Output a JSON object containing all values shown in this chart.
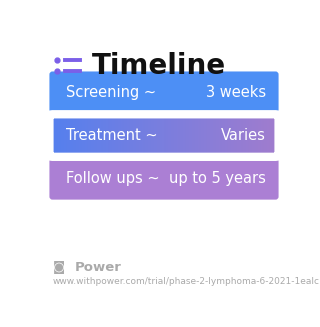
{
  "title": "Timeline",
  "title_fontsize": 20,
  "title_color": "#111111",
  "title_icon_color": "#7B5FE8",
  "background_color": "#ffffff",
  "rows": [
    {
      "left_label": "Screening ~",
      "right_label": "3 weeks",
      "color_left": "#4d8ff5",
      "color_right": "#5599ff",
      "gradient": false
    },
    {
      "left_label": "Treatment ~",
      "right_label": "Varies",
      "color_left": "#5580ee",
      "color_right": "#a07cce",
      "gradient": true
    },
    {
      "left_label": "Follow ups ~",
      "right_label": "up to 5 years",
      "color_left": "#ab7fd4",
      "color_right": "#b87fd4",
      "gradient": false
    }
  ],
  "label_fontsize": 10.5,
  "label_color": "#ffffff",
  "footer_text": "Power",
  "footer_url": "www.withpower.com/trial/phase-2-lymphoma-6-2021-1ealc",
  "footer_color": "#aaaaaa",
  "footer_fontsize": 6.5
}
